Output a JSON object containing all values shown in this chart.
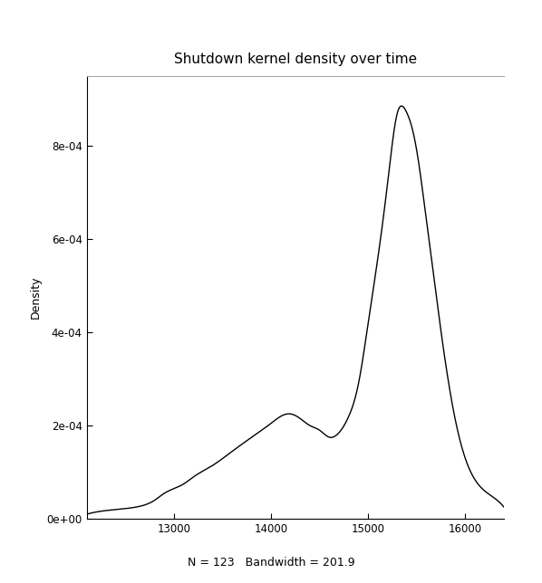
{
  "title": "Shutdown kernel density over time",
  "xlabel": "",
  "ylabel": "Density",
  "subtitle": "N = 123   Bandwidth = 201.9",
  "N": 123,
  "bandwidth": 201.9,
  "xlim": [
    12100,
    16400
  ],
  "ylim": [
    0,
    0.00095
  ],
  "xticks": [
    13000,
    14000,
    15000,
    16000
  ],
  "yticks": [
    0,
    0.0002,
    0.0004,
    0.0006,
    0.0008
  ],
  "ytick_labels": [
    "0e+00",
    "2e-04",
    "4e-04",
    "6e-04",
    "8e-04"
  ],
  "line_color": "#000000",
  "line_width": 1.0,
  "background_color": "#ffffff",
  "title_fontsize": 11,
  "label_fontsize": 9,
  "tick_fontsize": 8.5,
  "subtitle_fontsize": 9,
  "kde_points_x": [
    12100,
    12400,
    12600,
    12700,
    12800,
    12900,
    13000,
    13100,
    13200,
    13400,
    13600,
    13800,
    14000,
    14100,
    14200,
    14300,
    14400,
    14500,
    14600,
    14700,
    14800,
    14900,
    15000,
    15100,
    15200,
    15300,
    15350,
    15400,
    15450,
    15500,
    15600,
    15700,
    15800,
    15900,
    16000,
    16200,
    16400
  ],
  "kde_points_y": [
    1e-05,
    2e-05,
    2.5e-05,
    3e-05,
    4e-05,
    5.5e-05,
    6.5e-05,
    7.5e-05,
    9e-05,
    0.000115,
    0.000145,
    0.000175,
    0.000205,
    0.00022,
    0.000225,
    0.000215,
    0.0002,
    0.00019,
    0.000175,
    0.000185,
    0.00022,
    0.00029,
    0.00042,
    0.00056,
    0.00072,
    0.00087,
    0.000885,
    0.00087,
    0.00084,
    0.00079,
    0.00064,
    0.00048,
    0.00033,
    0.00021,
    0.00013,
    6e-05,
    2.5e-05
  ]
}
